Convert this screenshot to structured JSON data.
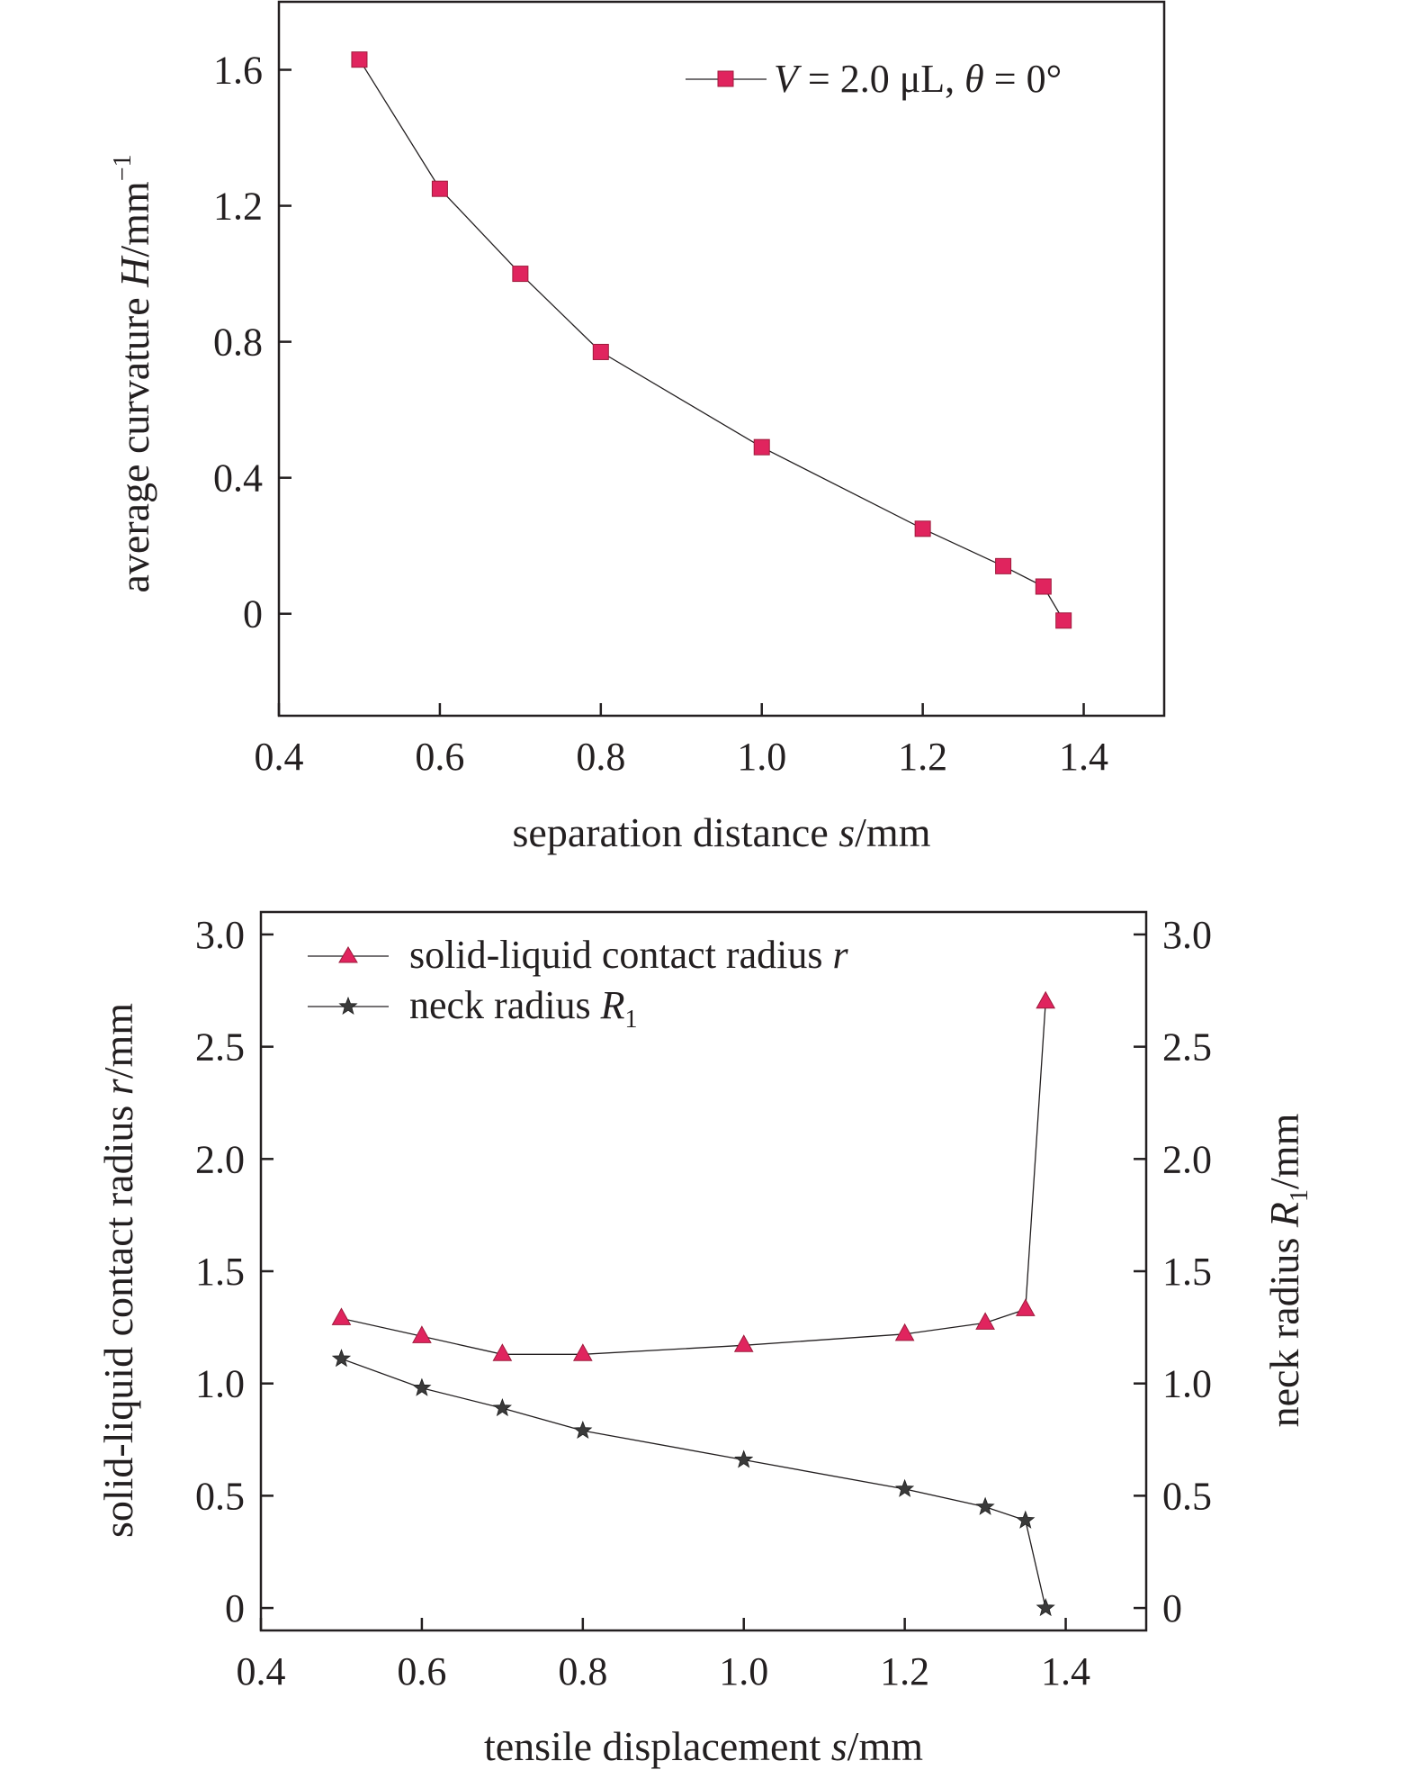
{
  "chart_data": [
    {
      "type": "line",
      "xlabel": "separation distance s/mm",
      "ylabel": "average curvature H/mm⁻¹",
      "xlabel_parts": {
        "pre": "separation distance ",
        "var": "s",
        "post": "/mm"
      },
      "ylabel_parts": {
        "pre": "average curvature ",
        "var": "H",
        "post": "/mm",
        "sup": "−1"
      },
      "xlim": [
        0.4,
        1.5
      ],
      "ylim": [
        -0.3,
        1.8
      ],
      "xticks": [
        0.4,
        0.6,
        0.8,
        1.0,
        1.2,
        1.4
      ],
      "xtick_labels": [
        "0.4",
        "0.6",
        "0.8",
        "1.0",
        "1.2",
        "1.4"
      ],
      "yticks": [
        0,
        0.4,
        0.8,
        1.2,
        1.6
      ],
      "ytick_labels": [
        "0",
        "0.4",
        "0.8",
        "1.2",
        "1.6"
      ],
      "grid": false,
      "legend_position": "top-right",
      "series": [
        {
          "name": "V = 2.0 μL, θ = 0°",
          "name_parts": {
            "v": "V",
            "mid": " = 2.0 μL, ",
            "theta": "θ",
            "post": " = 0°"
          },
          "marker": "square",
          "color": "#e0245e",
          "x": [
            0.5,
            0.6,
            0.7,
            0.8,
            1.0,
            1.2,
            1.3,
            1.35,
            1.375
          ],
          "y": [
            1.63,
            1.25,
            1.0,
            0.77,
            0.49,
            0.25,
            0.14,
            0.08,
            -0.02
          ]
        }
      ]
    },
    {
      "type": "line",
      "xlabel": "tensile displacement s/mm",
      "ylabel": "solid-liquid contact radius r/mm",
      "y2label": "neck radius R1/mm",
      "xlabel_parts": {
        "pre": "tensile displacement ",
        "var": "s",
        "post": "/mm"
      },
      "ylabel_parts": {
        "pre": "solid-liquid contact radius ",
        "var": "r",
        "post": "/mm"
      },
      "y2label_parts": {
        "pre": "neck radius ",
        "var": "R",
        "sub": "1",
        "post": "/mm"
      },
      "xlim": [
        0.4,
        1.5
      ],
      "ylim": [
        -0.1,
        3.1
      ],
      "y2lim": [
        -0.1,
        3.1
      ],
      "xticks": [
        0.4,
        0.6,
        0.8,
        1.0,
        1.2,
        1.4
      ],
      "xtick_labels": [
        "0.4",
        "0.6",
        "0.8",
        "1.0",
        "1.2",
        "1.4"
      ],
      "yticks": [
        0,
        0.5,
        1.0,
        1.5,
        2.0,
        2.5,
        3.0
      ],
      "ytick_labels": [
        "0",
        "0.5",
        "1.0",
        "1.5",
        "2.0",
        "2.5",
        "3.0"
      ],
      "grid": false,
      "legend_position": "top-left",
      "series": [
        {
          "name": "solid-liquid contact radius r",
          "name_parts": {
            "pre": "solid-liquid contact radius ",
            "var": "r"
          },
          "marker": "triangle",
          "color": "#e0245e",
          "x": [
            0.5,
            0.6,
            0.7,
            0.8,
            1.0,
            1.2,
            1.3,
            1.35,
            1.375
          ],
          "y": [
            1.29,
            1.21,
            1.13,
            1.13,
            1.17,
            1.22,
            1.27,
            1.33,
            2.7
          ]
        },
        {
          "name": "neck radius R1",
          "name_parts": {
            "pre": "neck radius ",
            "var": "R",
            "sub": "1"
          },
          "marker": "star",
          "color": "#3a3a3a",
          "x": [
            0.5,
            0.6,
            0.7,
            0.8,
            1.0,
            1.2,
            1.3,
            1.35,
            1.375
          ],
          "y": [
            1.11,
            0.98,
            0.89,
            0.79,
            0.66,
            0.53,
            0.45,
            0.39,
            0.0
          ]
        }
      ]
    }
  ]
}
